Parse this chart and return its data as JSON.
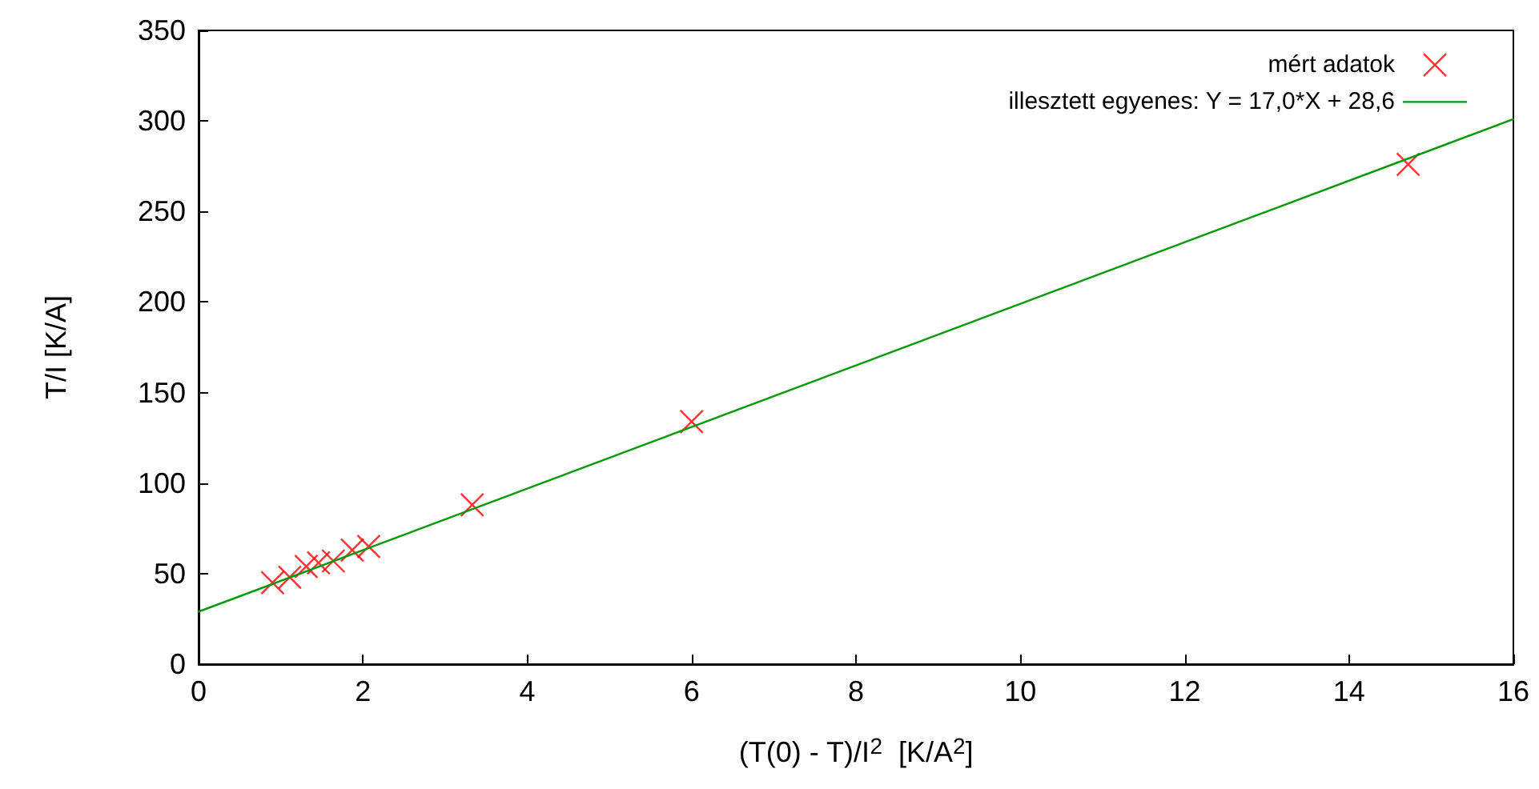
{
  "chart_data": {
    "type": "scatter",
    "xlabel": "(T(0) - T)/I$^{2}$  [K/A$^{2}$]",
    "ylabel": "T/I [K/A]",
    "xlim": [
      0,
      16
    ],
    "xticks": [
      0,
      2,
      4,
      6,
      8,
      10,
      12,
      14,
      16
    ],
    "ylim": [
      0,
      350
    ],
    "yticks": [
      0,
      50,
      100,
      150,
      200,
      250,
      300,
      350
    ],
    "grid": false,
    "legend": "top right",
    "series": [
      {
        "name": "mért adatok",
        "marker": "cross",
        "color": "#ff0000",
        "x": [
          0.9,
          1.11,
          1.31,
          1.46,
          1.64,
          1.87,
          2.07,
          3.33,
          6.0,
          14.72
        ],
        "values": [
          45,
          48,
          54,
          56,
          57,
          63,
          65,
          88,
          134,
          276
        ]
      },
      {
        "name": "illesztett egyenes: Y = 17,0*X + 28,6",
        "type": "line",
        "marker": "none",
        "line_style": "solid",
        "color": "#009900",
        "x": [
          0,
          16
        ],
        "values": [
          29,
          301
        ]
      }
    ]
  }
}
